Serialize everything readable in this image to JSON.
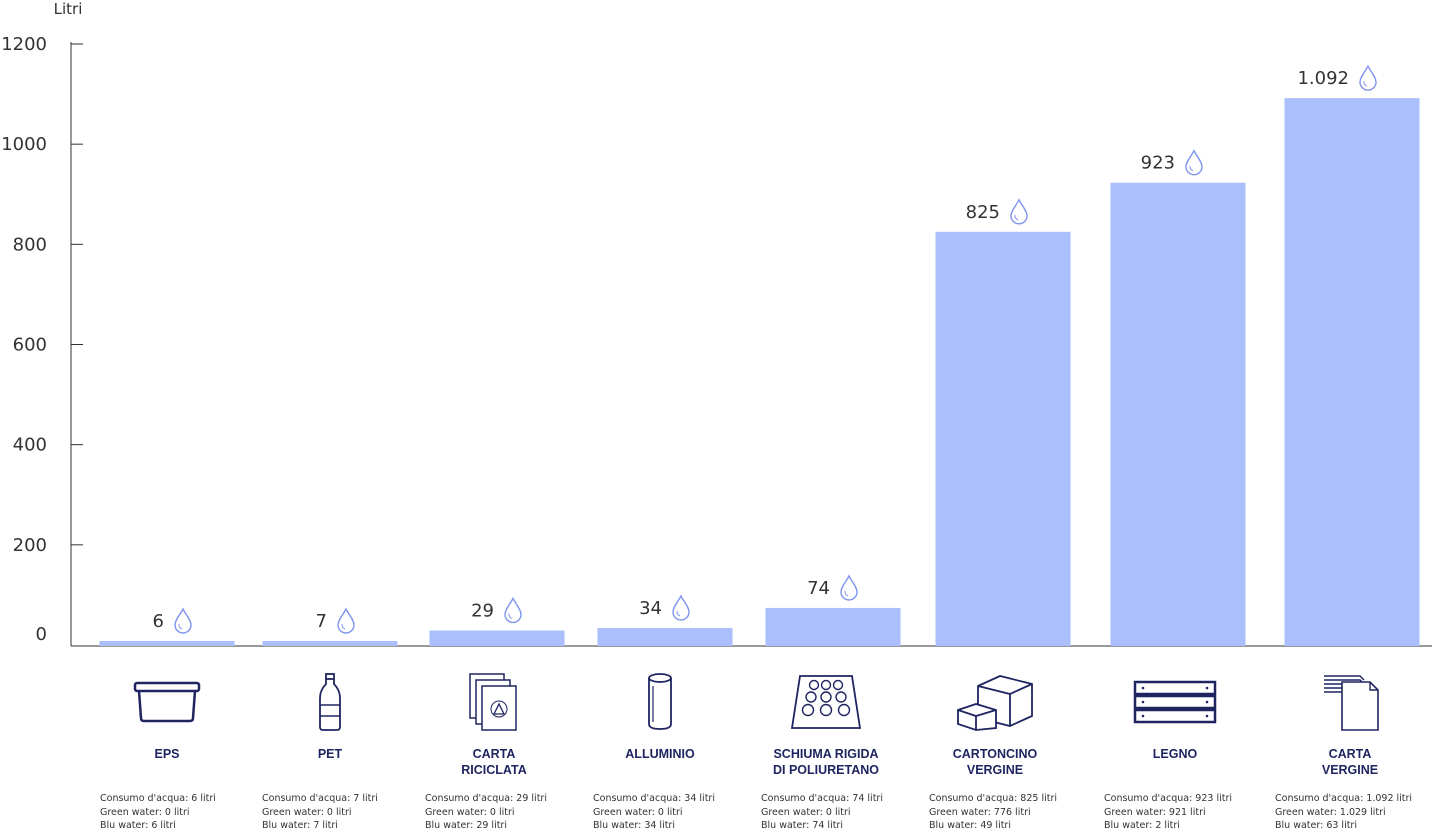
{
  "chart_data": {
    "type": "bar",
    "ylabel": "Litri",
    "ylim": [
      0,
      1200
    ],
    "yticks": [
      0,
      200,
      400,
      600,
      800,
      1000,
      1200
    ],
    "categories": [
      "EPS",
      "PET",
      "CARTA\nRICICLATA",
      "ALLUMINIO",
      "SCHIUMA RIGIDA\nDI POLIURETANO",
      "CARTONCINO\nVERGINE",
      "LEGNO",
      "CARTA\nVERGINE"
    ],
    "values": [
      6,
      7,
      29,
      34,
      74,
      825,
      923,
      1092
    ],
    "value_labels": [
      "6",
      "7",
      "29",
      "34",
      "74",
      "825",
      "923",
      "1.092"
    ],
    "bar_color": "#aabffb",
    "legend": "none",
    "grid": false
  },
  "categories_info": [
    {
      "icon": "container-box-icon",
      "details": [
        "Consumo d'acqua: 6 litri",
        "Green water: 0 litri",
        "Blu water: 6 litri"
      ]
    },
    {
      "icon": "bottle-icon",
      "details": [
        "Consumo d'acqua: 7 litri",
        "Green water: 0 litri",
        "Blu water: 7 litri"
      ]
    },
    {
      "icon": "recycled-paper-icon",
      "details": [
        "Consumo d'acqua: 29 litri",
        "Green water: 0 litri",
        "Blu water: 29 litri"
      ]
    },
    {
      "icon": "can-icon",
      "details": [
        "Consumo d'acqua: 34 litri",
        "Green water: 0 litri",
        "Blu water: 34 litri"
      ]
    },
    {
      "icon": "foam-tray-icon",
      "details": [
        "Consumo d'acqua: 74 litri",
        "Green water: 0 litri",
        "Blu water: 74 litri"
      ]
    },
    {
      "icon": "cardboard-boxes-icon",
      "details": [
        "Consumo d'acqua: 825 litri",
        "Green water: 776 litri",
        "Blu water: 49 litri"
      ]
    },
    {
      "icon": "wood-crate-icon",
      "details": [
        "Consumo d'acqua: 923 litri",
        "Green water: 921 litri",
        "Blu water: 2 litri"
      ]
    },
    {
      "icon": "paper-sheets-icon",
      "details": [
        "Consumo d'acqua: 1.092 litri",
        "Green water: 1.029 litri",
        "Blu water: 63 litri"
      ]
    }
  ],
  "colors": {
    "bar": "#aabffb",
    "drop": "#7e94ee",
    "icon": "#1f2561",
    "axis": "#333333"
  }
}
